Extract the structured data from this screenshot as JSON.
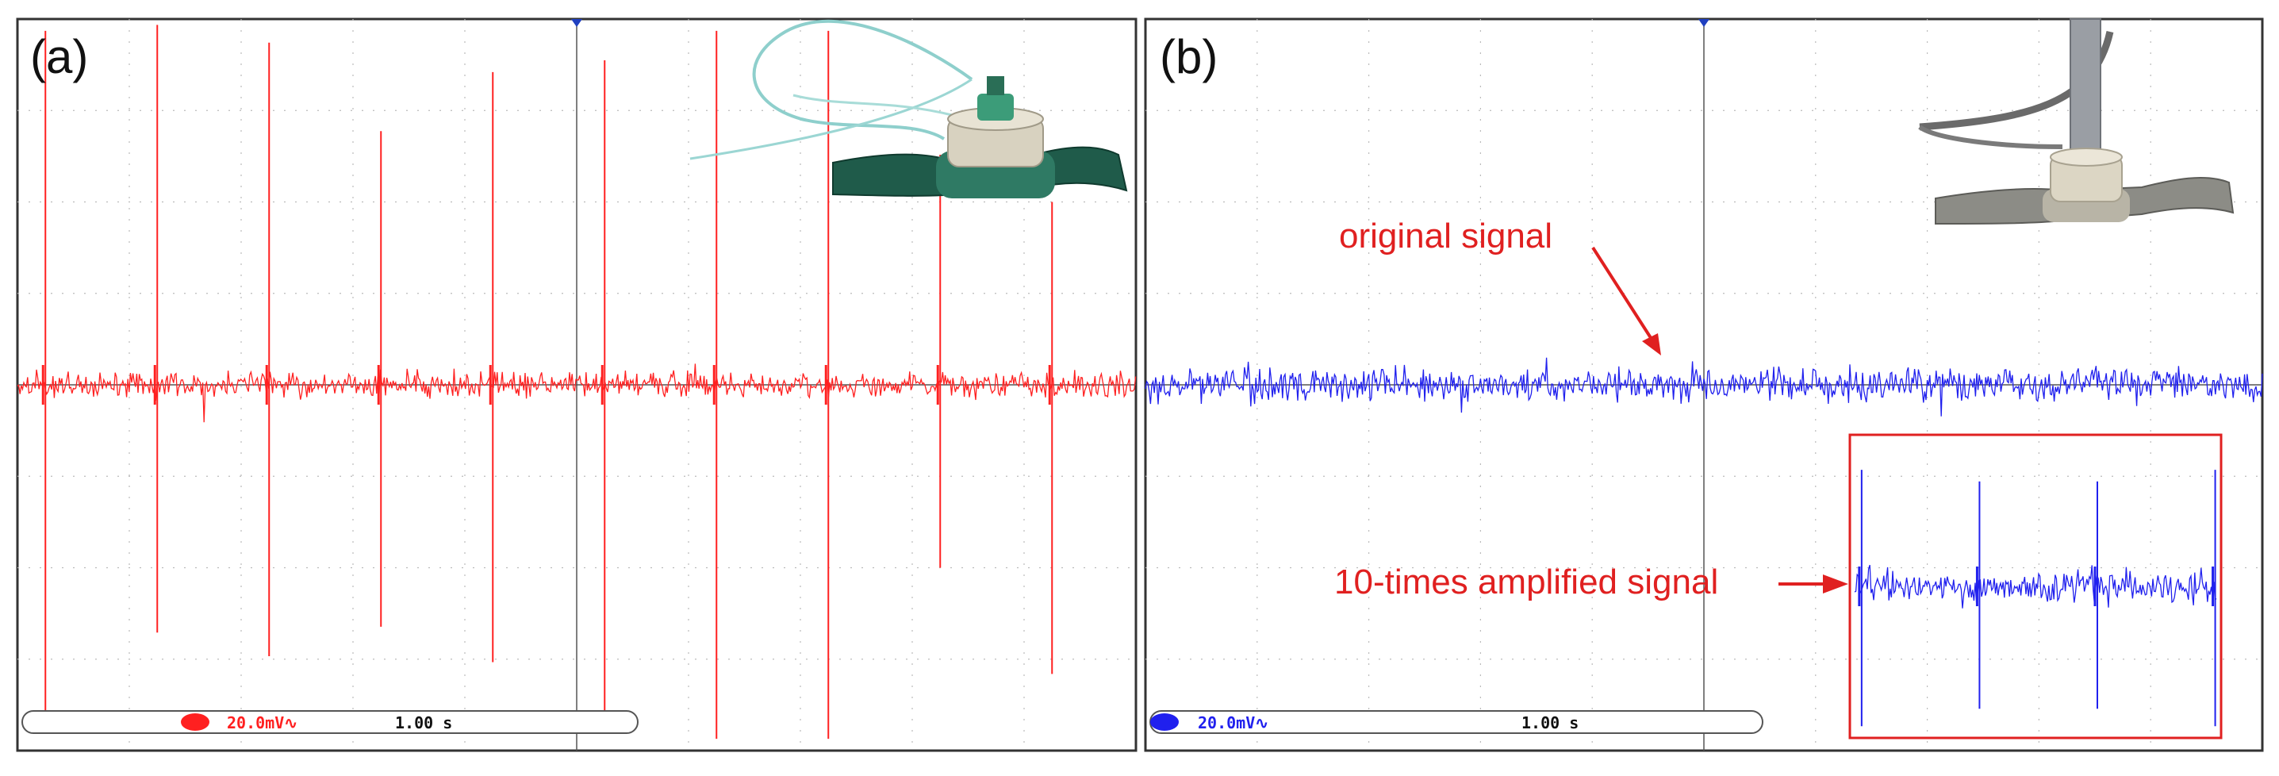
{
  "chart_data": [
    {
      "type": "line",
      "panel": "(a)",
      "color": "#ff2020",
      "x": [
        0,
        1,
        2,
        3,
        4,
        5,
        6,
        7,
        8,
        9
      ],
      "series": [
        {
          "values": [
            3.0,
            3.05,
            2.9,
            2.15,
            2.65,
            2.75,
            3.0,
            3.0,
            1.95,
            1.55
          ],
          "negative_values": [
            -2.95,
            -2.1,
            -2.3,
            -2.05,
            -2.35,
            -2.95,
            -3.0,
            -3.0,
            -1.55,
            -2.45
          ]
        }
      ],
      "noise_level": 0.15,
      "xlim": [
        -0.25,
        9.75
      ],
      "ylim": [
        -3.1,
        3.1
      ],
      "grid": true,
      "scale": {
        "channel_icon": "ch-red-icon",
        "volts_per_div": "20.0mV∿",
        "time_per_div": "1.00 s"
      }
    },
    {
      "type": "line",
      "panel": "(b)",
      "color": "#2020ee",
      "series": [
        {
          "values": [],
          "noise_level": 0.2
        }
      ],
      "inset": {
        "x": [
          0,
          1,
          2,
          3
        ],
        "series": [
          {
            "values": [
              1.0,
              0.9,
              0.9,
              1.0
            ],
            "negative_values": [
              -1.2,
              -1.05,
              -1.05,
              -1.2
            ]
          }
        ],
        "noise_level": 0.2
      },
      "annotations": [
        {
          "text": "original signal"
        },
        {
          "text": "10-times amplified signal"
        }
      ],
      "xlim": [
        0,
        10
      ],
      "ylim": [
        -3.1,
        3.1
      ],
      "grid": true,
      "scale": {
        "channel_icon": "ch-blue-icon",
        "volts_per_div": "20.0mV∿",
        "time_per_div": "1.00 s"
      }
    }
  ]
}
